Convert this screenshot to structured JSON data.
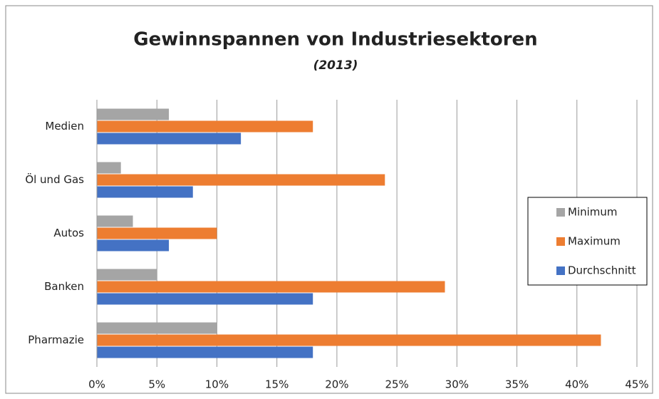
{
  "chart_data": {
    "type": "bar",
    "orientation": "horizontal",
    "title": "Gewinnspannen von Industriesektoren",
    "subtitle": "(2013)",
    "categories": [
      "Medien",
      "Öl und Gas",
      "Autos",
      "Banken",
      "Pharmazie"
    ],
    "series": [
      {
        "name": "Minimum",
        "color": "#a5a5a5",
        "values": [
          6,
          2,
          3,
          5,
          10
        ]
      },
      {
        "name": "Maximum",
        "color": "#ed7d31",
        "values": [
          18,
          24,
          10,
          29,
          42
        ]
      },
      {
        "name": "Durchschnitt",
        "color": "#4472c4",
        "values": [
          12,
          8,
          6,
          18,
          18
        ]
      }
    ],
    "xlim": [
      0,
      45
    ],
    "xticks": [
      {
        "value": 0,
        "label": "0%"
      },
      {
        "value": 5,
        "label": "5%"
      },
      {
        "value": 10,
        "label": "10%"
      },
      {
        "value": 15,
        "label": "15%"
      },
      {
        "value": 20,
        "label": "20%"
      },
      {
        "value": 25,
        "label": "25%"
      },
      {
        "value": 30,
        "label": "30%"
      },
      {
        "value": 35,
        "label": "35%"
      },
      {
        "value": 40,
        "label": "40%"
      },
      {
        "value": 45,
        "label": "45%"
      }
    ],
    "grid": true,
    "legend": "right"
  }
}
